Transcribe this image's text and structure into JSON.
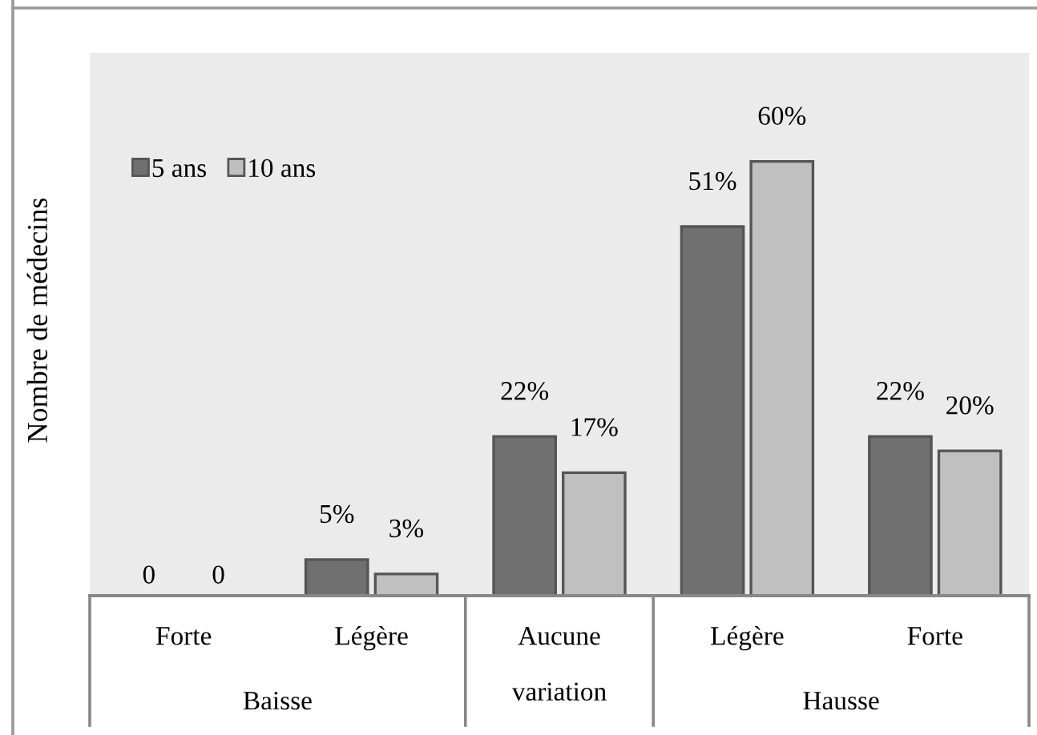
{
  "chart_data": {
    "type": "bar",
    "ylabel": "Nombre de médecins",
    "categories": [
      "Forte",
      "Légère",
      "Aucune variation",
      "Légère",
      "Forte"
    ],
    "series": [
      {
        "name": "5 ans",
        "color": "#707070",
        "values": [
          0,
          5,
          22,
          51,
          22
        ],
        "value_labels": [
          "0",
          "5%",
          "22%",
          "51%",
          "22%"
        ]
      },
      {
        "name": "10 ans",
        "color": "#c0c0c0",
        "values": [
          0,
          3,
          17,
          60,
          20
        ],
        "value_labels": [
          "0",
          "3%",
          "17%",
          "60%",
          "20%"
        ]
      }
    ],
    "annotations": [
      "Baisse",
      "Hausse"
    ],
    "legend": "top left"
  }
}
